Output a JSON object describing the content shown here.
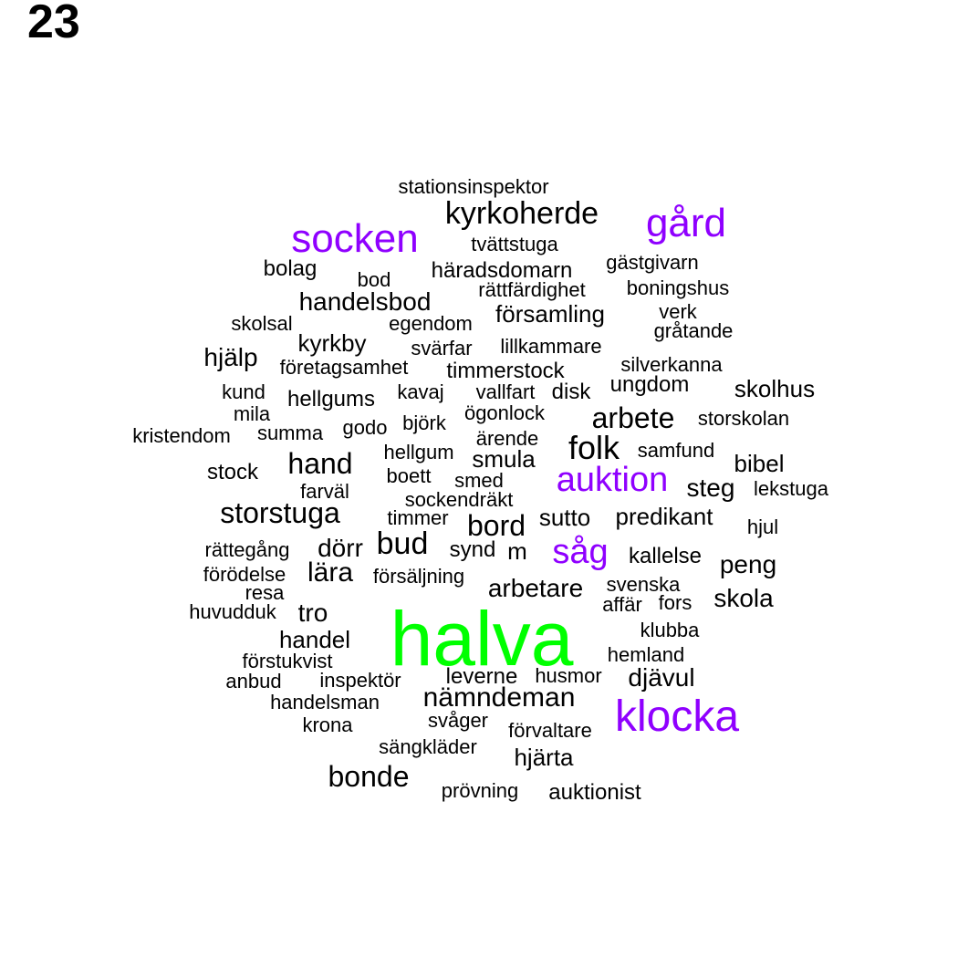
{
  "page_number": "23",
  "colors": {
    "top": "#00ff00",
    "high": "#8f00ff",
    "normal": "#000000"
  },
  "words": [
    {
      "text": "halva",
      "tier": "top"
    },
    {
      "text": "socken",
      "tier": "high"
    },
    {
      "text": "gård",
      "tier": "high"
    },
    {
      "text": "klocka",
      "tier": "high"
    },
    {
      "text": "auktion",
      "tier": "high"
    },
    {
      "text": "såg",
      "tier": "high"
    },
    {
      "text": "stationsinspektor",
      "tier": "normal"
    },
    {
      "text": "kyrkoherde",
      "tier": "normal"
    },
    {
      "text": "tvättstuga",
      "tier": "normal"
    },
    {
      "text": "bolag",
      "tier": "normal"
    },
    {
      "text": "bod",
      "tier": "normal"
    },
    {
      "text": "häradsdomarn",
      "tier": "normal"
    },
    {
      "text": "gästgivarn",
      "tier": "normal"
    },
    {
      "text": "rättfärdighet",
      "tier": "normal"
    },
    {
      "text": "boningshus",
      "tier": "normal"
    },
    {
      "text": "handelsbod",
      "tier": "normal"
    },
    {
      "text": "skolsal",
      "tier": "normal"
    },
    {
      "text": "egendom",
      "tier": "normal"
    },
    {
      "text": "församling",
      "tier": "normal"
    },
    {
      "text": "verk",
      "tier": "normal"
    },
    {
      "text": "gråtande",
      "tier": "normal"
    },
    {
      "text": "kyrkby",
      "tier": "normal"
    },
    {
      "text": "svärfar",
      "tier": "normal"
    },
    {
      "text": "lillkammare",
      "tier": "normal"
    },
    {
      "text": "hjälp",
      "tier": "normal"
    },
    {
      "text": "företagsamhet",
      "tier": "normal"
    },
    {
      "text": "timmerstock",
      "tier": "normal"
    },
    {
      "text": "silverkanna",
      "tier": "normal"
    },
    {
      "text": "ungdom",
      "tier": "normal"
    },
    {
      "text": "skolhus",
      "tier": "normal"
    },
    {
      "text": "kund",
      "tier": "normal"
    },
    {
      "text": "hellgums",
      "tier": "normal"
    },
    {
      "text": "kavaj",
      "tier": "normal"
    },
    {
      "text": "vallfart",
      "tier": "normal"
    },
    {
      "text": "disk",
      "tier": "normal"
    },
    {
      "text": "mila",
      "tier": "normal"
    },
    {
      "text": "ögonlock",
      "tier": "normal"
    },
    {
      "text": "arbete",
      "tier": "normal"
    },
    {
      "text": "storskolan",
      "tier": "normal"
    },
    {
      "text": "kristendom",
      "tier": "normal"
    },
    {
      "text": "summa",
      "tier": "normal"
    },
    {
      "text": "godo",
      "tier": "normal"
    },
    {
      "text": "björk",
      "tier": "normal"
    },
    {
      "text": "ärende",
      "tier": "normal"
    },
    {
      "text": "folk",
      "tier": "normal"
    },
    {
      "text": "samfund",
      "tier": "normal"
    },
    {
      "text": "hellgum",
      "tier": "normal"
    },
    {
      "text": "smula",
      "tier": "normal"
    },
    {
      "text": "bibel",
      "tier": "normal"
    },
    {
      "text": "hand",
      "tier": "normal"
    },
    {
      "text": "stock",
      "tier": "normal"
    },
    {
      "text": "boett",
      "tier": "normal"
    },
    {
      "text": "smed",
      "tier": "normal"
    },
    {
      "text": "steg",
      "tier": "normal"
    },
    {
      "text": "lekstuga",
      "tier": "normal"
    },
    {
      "text": "farväl",
      "tier": "normal"
    },
    {
      "text": "sockendräkt",
      "tier": "normal"
    },
    {
      "text": "storstuga",
      "tier": "normal"
    },
    {
      "text": "timmer",
      "tier": "normal"
    },
    {
      "text": "bord",
      "tier": "normal"
    },
    {
      "text": "sutto",
      "tier": "normal"
    },
    {
      "text": "predikant",
      "tier": "normal"
    },
    {
      "text": "hjul",
      "tier": "normal"
    },
    {
      "text": "rättegång",
      "tier": "normal"
    },
    {
      "text": "dörr",
      "tier": "normal"
    },
    {
      "text": "bud",
      "tier": "normal"
    },
    {
      "text": "synd",
      "tier": "normal"
    },
    {
      "text": "m",
      "tier": "normal"
    },
    {
      "text": "kallelse",
      "tier": "normal"
    },
    {
      "text": "peng",
      "tier": "normal"
    },
    {
      "text": "förödelse",
      "tier": "normal"
    },
    {
      "text": "lära",
      "tier": "normal"
    },
    {
      "text": "försäljning",
      "tier": "normal"
    },
    {
      "text": "arbetare",
      "tier": "normal"
    },
    {
      "text": "svenska",
      "tier": "normal"
    },
    {
      "text": "resa",
      "tier": "normal"
    },
    {
      "text": "affär",
      "tier": "normal"
    },
    {
      "text": "fors",
      "tier": "normal"
    },
    {
      "text": "skola",
      "tier": "normal"
    },
    {
      "text": "huvudduk",
      "tier": "normal"
    },
    {
      "text": "tro",
      "tier": "normal"
    },
    {
      "text": "klubba",
      "tier": "normal"
    },
    {
      "text": "handel",
      "tier": "normal"
    },
    {
      "text": "hemland",
      "tier": "normal"
    },
    {
      "text": "förstukvist",
      "tier": "normal"
    },
    {
      "text": "anbud",
      "tier": "normal"
    },
    {
      "text": "inspektör",
      "tier": "normal"
    },
    {
      "text": "leverne",
      "tier": "normal"
    },
    {
      "text": "husmor",
      "tier": "normal"
    },
    {
      "text": "djävul",
      "tier": "normal"
    },
    {
      "text": "nämndeman",
      "tier": "normal"
    },
    {
      "text": "handelsman",
      "tier": "normal"
    },
    {
      "text": "svåger",
      "tier": "normal"
    },
    {
      "text": "krona",
      "tier": "normal"
    },
    {
      "text": "förvaltare",
      "tier": "normal"
    },
    {
      "text": "sängkläder",
      "tier": "normal"
    },
    {
      "text": "hjärta",
      "tier": "normal"
    },
    {
      "text": "bonde",
      "tier": "normal"
    },
    {
      "text": "prövning",
      "tier": "normal"
    },
    {
      "text": "auktionist",
      "tier": "normal"
    }
  ]
}
